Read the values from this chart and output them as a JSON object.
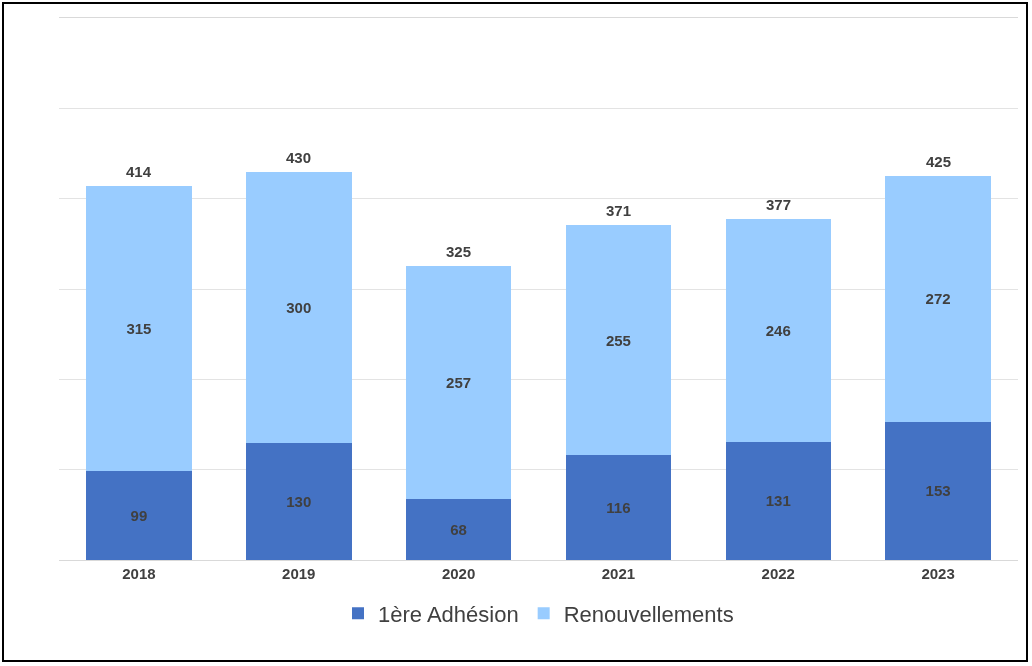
{
  "chart_data": {
    "type": "bar",
    "stacked": true,
    "categories": [
      "2018",
      "2019",
      "2020",
      "2021",
      "2022",
      "2023"
    ],
    "series": [
      {
        "name": "1ère Adhésion",
        "color": "#4472c4",
        "values": [
          99,
          130,
          68,
          116,
          131,
          153
        ]
      },
      {
        "name": "Renouvellements",
        "color": "#99ccff",
        "values": [
          315,
          300,
          257,
          255,
          246,
          272
        ]
      }
    ],
    "data_labels": true,
    "totals": [
      "414",
      "430",
      "325",
      "371",
      "377",
      "425"
    ],
    "ylim": [
      0,
      600
    ],
    "yticks": [
      {
        "value": 0,
        "label": null
      },
      {
        "value": 100,
        "label": null
      },
      {
        "value": 200,
        "label": null
      },
      {
        "value": 300,
        "label": null
      },
      {
        "value": 400,
        "label": null
      },
      {
        "value": 500,
        "label": null
      },
      {
        "value": 600,
        "label": null
      }
    ],
    "grid": "y",
    "legend": "bottom"
  }
}
